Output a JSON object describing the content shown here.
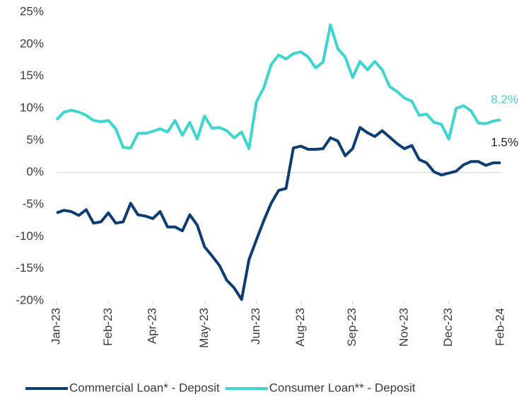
{
  "chart_data": {
    "type": "line",
    "categories": [
      "Jan-23",
      null,
      null,
      null,
      null,
      null,
      null,
      "Feb-23",
      null,
      null,
      null,
      null,
      null,
      "Apr-23",
      null,
      null,
      null,
      null,
      null,
      null,
      "May-23",
      null,
      null,
      null,
      null,
      null,
      null,
      "Jun-23",
      null,
      null,
      null,
      null,
      null,
      "Aug-23",
      null,
      null,
      null,
      null,
      null,
      null,
      "Sep-23",
      null,
      null,
      null,
      null,
      null,
      null,
      "Nov-23",
      null,
      null,
      null,
      null,
      null,
      "Dec-23",
      null,
      null,
      null,
      null,
      null,
      null,
      "Feb-24"
    ],
    "series": [
      {
        "name": "Commercial Loan* - Deposit",
        "color": "#0d3d73",
        "values": [
          -6.3,
          -5.9,
          -6.1,
          -6.7,
          -5.8,
          -7.9,
          -7.7,
          -6.3,
          -7.9,
          -7.7,
          -4.8,
          -6.6,
          -6.8,
          -7.2,
          -6.1,
          -8.5,
          -8.5,
          -9.1,
          -6.6,
          -8.2,
          -11.6,
          -13,
          -14.5,
          -16.8,
          -18,
          -19.8,
          -13.6,
          -10.5,
          -7.5,
          -4.8,
          -2.8,
          -2.5,
          3.8,
          4.1,
          3.6,
          3.6,
          3.7,
          5.4,
          4.9,
          2.6,
          3.7,
          7.0,
          6.2,
          5.6,
          6.5,
          5.5,
          4.5,
          3.7,
          4.2,
          2.0,
          1.5,
          0.1,
          -0.4,
          -0.1,
          0.2,
          1.2,
          1.7,
          1.7,
          1.1,
          1.5,
          1.5
        ],
        "value_labels": [
          null,
          null,
          null,
          null,
          null,
          null,
          null,
          null,
          null,
          null,
          null,
          null,
          null,
          null,
          null,
          null,
          null,
          null,
          null,
          null,
          null,
          null,
          null,
          null,
          null,
          null,
          null,
          null,
          null,
          null,
          null,
          null,
          null,
          null,
          null,
          null,
          null,
          null,
          null,
          null,
          null,
          null,
          null,
          null,
          null,
          null,
          null,
          null,
          null,
          null,
          null,
          null,
          null,
          null,
          null,
          null,
          null,
          null,
          null,
          null,
          "1.5%"
        ]
      },
      {
        "name": "Consumer Loan** - Deposit",
        "color": "#3dd6cf",
        "values": [
          8.2,
          9.4,
          9.7,
          9.4,
          8.9,
          8.1,
          7.9,
          8.1,
          6.8,
          3.9,
          3.8,
          6.1,
          6.1,
          6.4,
          6.8,
          6.3,
          8.1,
          5.8,
          7.8,
          5.2,
          8.8,
          6.9,
          7.0,
          6.5,
          5.4,
          6.3,
          3.7,
          11.0,
          13.2,
          16.8,
          18.3,
          17.7,
          18.5,
          18.8,
          18.0,
          16.3,
          17.2,
          23.0,
          19.3,
          18.0,
          14.8,
          17.3,
          16.0,
          17.3,
          16.0,
          13.4,
          12.6,
          11.6,
          11.1,
          8.9,
          9.1,
          7.8,
          7.5,
          5.2,
          10.0,
          10.4,
          9.6,
          7.7,
          7.6,
          8.0,
          8.2
        ],
        "value_labels": [
          null,
          null,
          null,
          null,
          null,
          null,
          null,
          null,
          null,
          null,
          null,
          null,
          null,
          null,
          null,
          null,
          null,
          null,
          null,
          null,
          null,
          null,
          null,
          null,
          null,
          null,
          null,
          null,
          null,
          null,
          null,
          null,
          null,
          null,
          null,
          null,
          null,
          null,
          null,
          null,
          null,
          null,
          null,
          null,
          null,
          null,
          null,
          null,
          null,
          null,
          null,
          null,
          null,
          null,
          null,
          null,
          null,
          null,
          null,
          null,
          "8.2%"
        ]
      }
    ],
    "ylim": [
      -20,
      25
    ],
    "yticks": [
      {
        "value": -20,
        "label": "-20%"
      },
      {
        "value": -15,
        "label": "-15%"
      },
      {
        "value": -10,
        "label": "-10%"
      },
      {
        "value": -5,
        "label": "-5%"
      },
      {
        "value": 0,
        "label": "0%"
      },
      {
        "value": 5,
        "label": "5%"
      },
      {
        "value": 10,
        "label": "10%"
      },
      {
        "value": 15,
        "label": "15%"
      },
      {
        "value": 20,
        "label": "20%"
      },
      {
        "value": 25,
        "label": "25%"
      }
    ],
    "grid": false,
    "legend": "bottom"
  }
}
